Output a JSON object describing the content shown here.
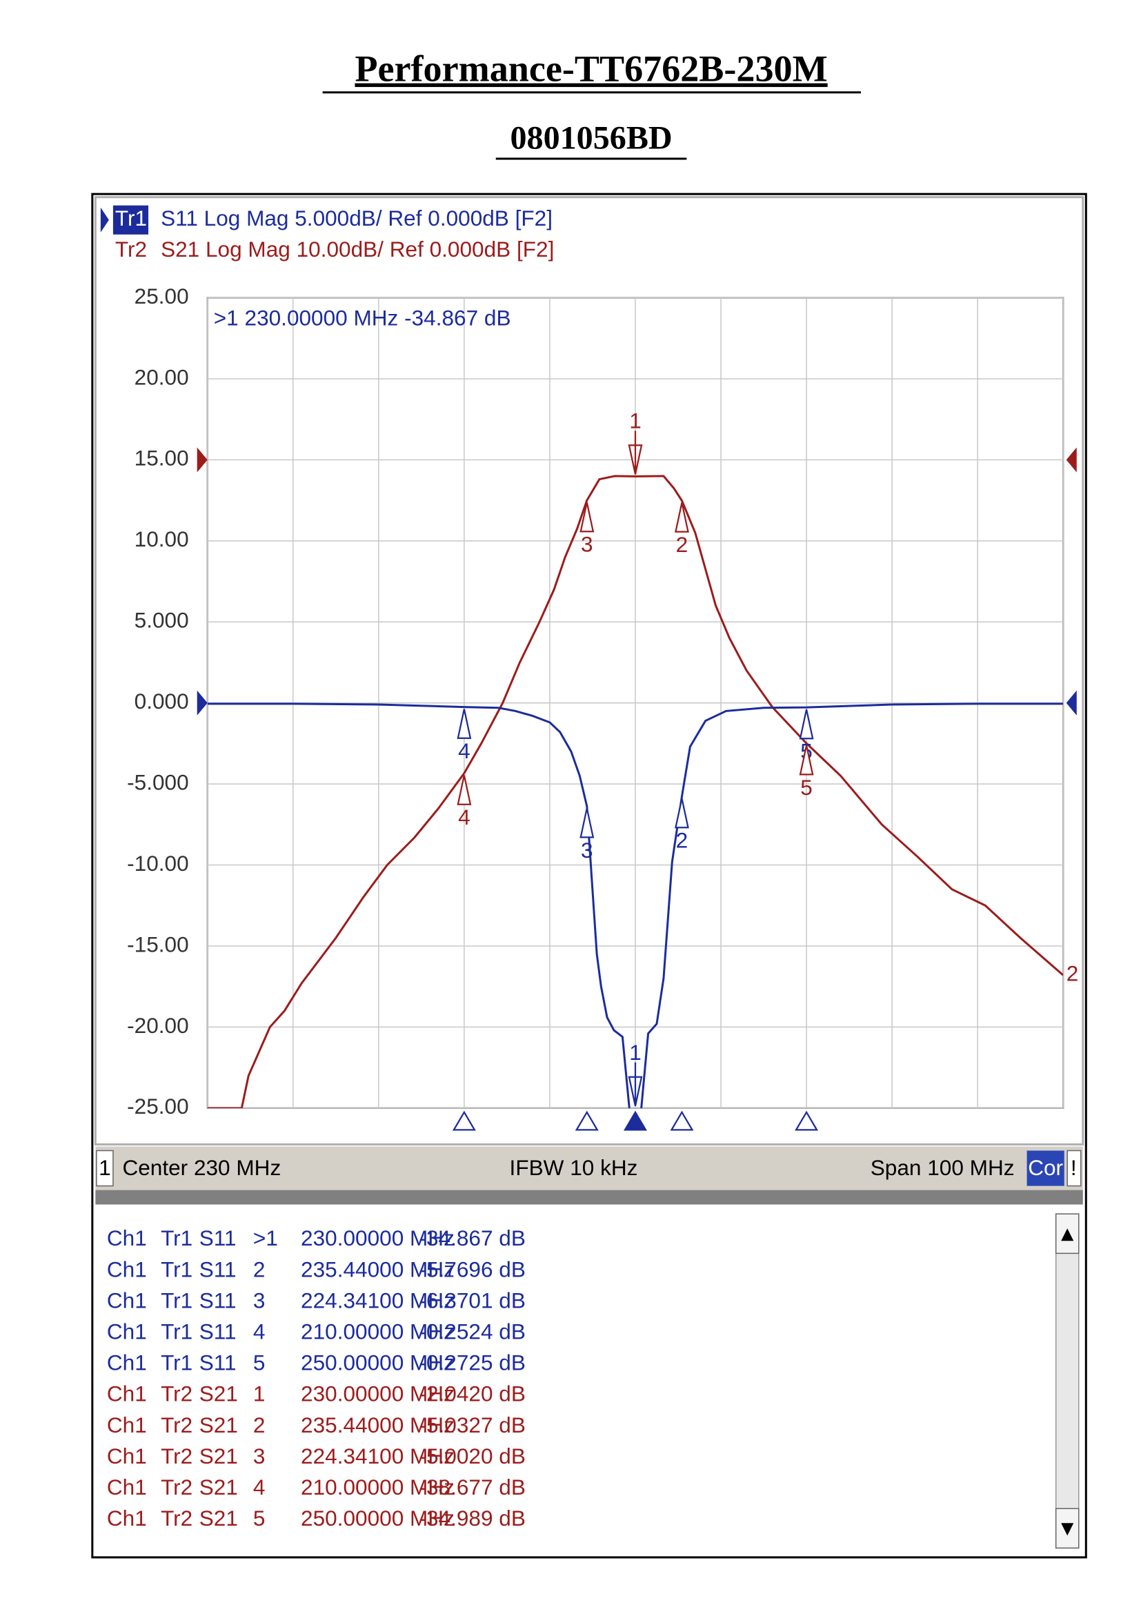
{
  "header": {
    "title": "Performance-TT6762B-230M",
    "subtitle": "0801056BD"
  },
  "chart_data": {
    "type": "line",
    "active_marker_readout": ">1  230.00000 MHz -34.867 dB",
    "xlim": [
      180,
      280
    ],
    "xticks": [
      180,
      190,
      200,
      210,
      220,
      230,
      240,
      250,
      260,
      270,
      280
    ],
    "ylim": [
      -25,
      25
    ],
    "yticks": [
      {
        "value": 25,
        "label": "25.00"
      },
      {
        "value": 20,
        "label": "20.00"
      },
      {
        "value": 15,
        "label": "15.00"
      },
      {
        "value": 10,
        "label": "10.00"
      },
      {
        "value": 5,
        "label": "5.000"
      },
      {
        "value": 0,
        "label": "0.000"
      },
      {
        "value": -5,
        "label": "-5.000"
      },
      {
        "value": -10,
        "label": "-10.00"
      },
      {
        "value": -15,
        "label": "-15.00"
      },
      {
        "value": -20,
        "label": "-20.00"
      },
      {
        "value": -25,
        "label": "-25.00"
      }
    ],
    "y2lim": [
      -80,
      20
    ],
    "grid": true,
    "status": {
      "channel": "1",
      "center": "Center 230 MHz",
      "ifbw": "IFBW 10 kHz",
      "span": "Span 100 MHz",
      "correction": "Cor",
      "flag": "!"
    },
    "series": [
      {
        "name": "Tr1",
        "header": "S11 Log Mag 5.000dB/ Ref 0.000dB [F2]",
        "color": "#1c2c9c",
        "x": [
          180,
          190,
          200,
          210,
          214,
          216,
          218,
          220,
          221.2,
          222.5,
          223.5,
          224.341,
          224.8,
          225.5,
          226,
          226.7,
          227.5,
          228.5,
          229.3,
          230,
          230.7,
          231.5,
          232.5,
          233.3,
          234.3,
          235.44,
          236.4,
          238.2,
          240.6,
          245,
          250,
          260,
          270,
          280
        ],
        "values": [
          -0.05,
          -0.05,
          -0.1,
          -0.2524,
          -0.3,
          -0.5,
          -0.8,
          -1.2,
          -1.8,
          -3,
          -4.5,
          -6.3701,
          -10,
          -15.5,
          -17.5,
          -19.4,
          -20.2,
          -20.6,
          -25,
          -34.867,
          -25,
          -20.4,
          -19.8,
          -17,
          -9.8,
          -5.7696,
          -2.7,
          -1.1,
          -0.5,
          -0.3,
          -0.2725,
          -0.1,
          -0.05,
          -0.05
        ],
        "markers": [
          {
            "label": "1",
            "x": 230,
            "value": -34.867
          },
          {
            "label": "2",
            "x": 235.44,
            "value": -5.7696
          },
          {
            "label": "3",
            "x": 224.341,
            "value": -6.3701
          },
          {
            "label": "4",
            "x": 210,
            "value": -0.2524
          },
          {
            "label": "5",
            "x": 250,
            "value": -0.2725
          }
        ]
      },
      {
        "name": "Tr2",
        "header": "S21 Log Mag 10.00dB/ Ref 0.000dB [F2]",
        "color": "#9c1c1c",
        "axis": "y2",
        "end_label": "2",
        "x": [
          180,
          184,
          184.8,
          187.3,
          189,
          191,
          195,
          198.2,
          201,
          204.2,
          207,
          210,
          212,
          214.5,
          216.5,
          218.8,
          220.5,
          221.8,
          223.2,
          224.341,
          225.8,
          227.6,
          230,
          233.3,
          234.5,
          235.44,
          237,
          239.4,
          241,
          243,
          246,
          250,
          254,
          258.8,
          263,
          267,
          270.9,
          275,
          280
        ],
        "values": [
          -80,
          -80,
          -76,
          -70,
          -68,
          -64.6,
          -59,
          -54,
          -50,
          -46.6,
          -43,
          -38.677,
          -35,
          -30,
          -25,
          -20,
          -16,
          -12,
          -8.5,
          -5.002,
          -2.4,
          -2.0,
          -2.042,
          -2.0,
          -3.5,
          -5.0327,
          -9,
          -18,
          -22,
          -26,
          -30.5,
          -34.989,
          -39,
          -45,
          -49,
          -53,
          -55,
          -59,
          -63.6
        ],
        "markers": [
          {
            "label": "1",
            "x": 230,
            "value": -2.042
          },
          {
            "label": "2",
            "x": 235.44,
            "value": -5.0327
          },
          {
            "label": "3",
            "x": 224.341,
            "value": -5.002
          },
          {
            "label": "4",
            "x": 210,
            "value": -38.677
          },
          {
            "label": "5",
            "x": 250,
            "value": -34.989
          }
        ]
      }
    ]
  },
  "marker_table": {
    "rows": [
      [
        "Ch1",
        "Tr1",
        "S11",
        ">1",
        "230.00000 MHz",
        "-34.867 dB"
      ],
      [
        "Ch1",
        "Tr1",
        "S11",
        "2",
        "235.44000 MHz",
        "-5.7696 dB"
      ],
      [
        "Ch1",
        "Tr1",
        "S11",
        "3",
        "224.34100 MHz",
        "-6.3701 dB"
      ],
      [
        "Ch1",
        "Tr1",
        "S11",
        "4",
        "210.00000 MHz",
        "-0.2524 dB"
      ],
      [
        "Ch1",
        "Tr1",
        "S11",
        "5",
        "250.00000 MHz",
        "-0.2725 dB"
      ],
      [
        "Ch1",
        "Tr2",
        "S21",
        "1",
        "230.00000 MHz",
        "-2.0420 dB"
      ],
      [
        "Ch1",
        "Tr2",
        "S21",
        "2",
        "235.44000 MHz",
        "-5.0327 dB"
      ],
      [
        "Ch1",
        "Tr2",
        "S21",
        "3",
        "224.34100 MHz",
        "-5.0020 dB"
      ],
      [
        "Ch1",
        "Tr2",
        "S21",
        "4",
        "210.00000 MHz",
        "-38.677 dB"
      ],
      [
        "Ch1",
        "Tr2",
        "S21",
        "5",
        "250.00000 MHz",
        "-34.989 dB"
      ]
    ]
  }
}
